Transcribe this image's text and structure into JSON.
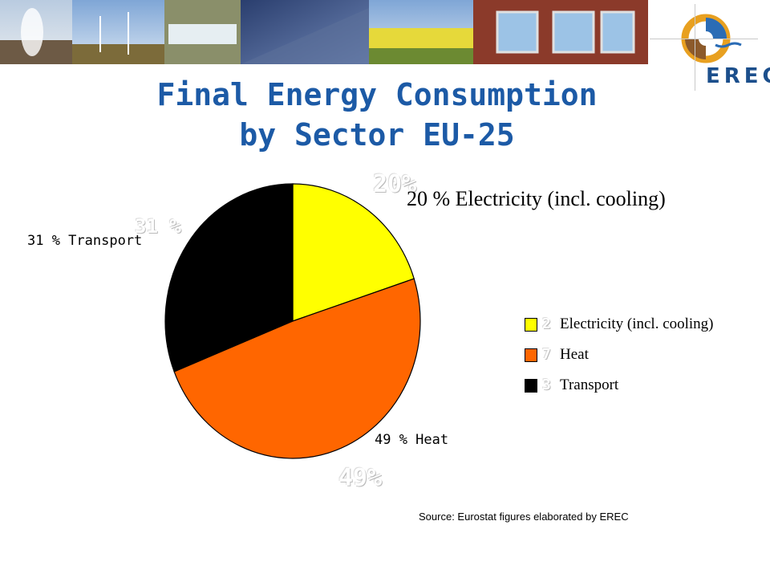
{
  "title": {
    "line1": "Final Energy Consumption",
    "line2": "by Sector EU-25"
  },
  "chart_data": {
    "type": "pie",
    "categories": [
      "Electricity (incl. cooling)",
      "Heat",
      "Transport"
    ],
    "values": [
      20,
      49,
      31
    ],
    "unit": "%",
    "colors": [
      "#ffff00",
      "#ff6600",
      "#000000"
    ],
    "start": "12 o'clock, clockwise",
    "data_labels": [
      "20 % Electricity (incl. cooling)",
      "49 % Heat",
      "31 % Transport"
    ],
    "legend_placement": "right",
    "legend": [
      "Electricity (incl. cooling)",
      "Heat",
      "Transport"
    ]
  },
  "source": "Source: Eurostat figures elaborated by EREC",
  "logo": {
    "text": "EREC"
  }
}
